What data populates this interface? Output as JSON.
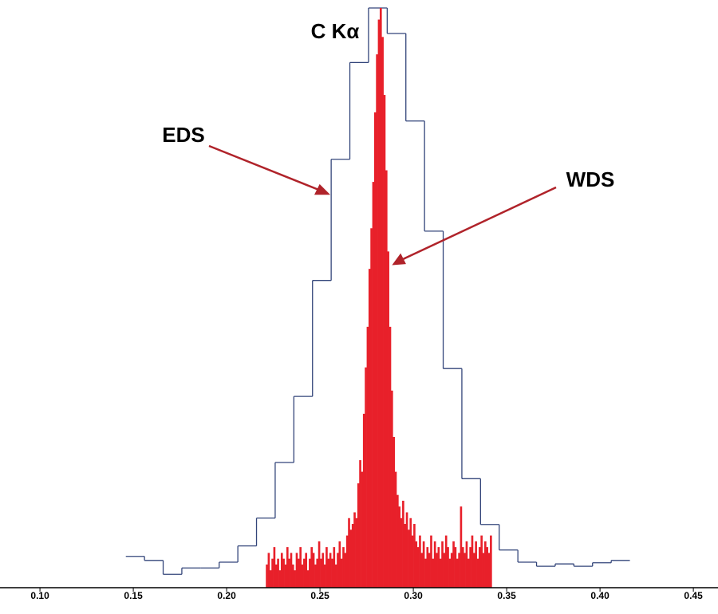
{
  "chart_data": {
    "type": "histogram",
    "title": "C Kα",
    "xlim": [
      0.0786,
      0.4632
    ],
    "ylim": [
      0,
      100
    ],
    "xticks": [
      {
        "value": 0.1,
        "label": "0.10"
      },
      {
        "value": 0.15,
        "label": "0.15"
      },
      {
        "value": 0.2,
        "label": "0.20"
      },
      {
        "value": 0.25,
        "label": "0.25"
      },
      {
        "value": 0.3,
        "label": "0.30"
      },
      {
        "value": 0.35,
        "label": "0.35"
      },
      {
        "value": 0.4,
        "label": "0.40"
      },
      {
        "value": 0.45,
        "label": "0.45"
      }
    ],
    "series": [
      {
        "name": "EDS",
        "color": "#33457a",
        "style": "step",
        "bins": [
          0.146,
          0.156,
          0.166,
          0.176,
          0.186,
          0.196,
          0.206,
          0.216,
          0.226,
          0.236,
          0.246,
          0.256,
          0.266,
          0.276,
          0.286,
          0.296,
          0.306,
          0.316,
          0.326,
          0.336,
          0.346,
          0.356,
          0.366,
          0.376,
          0.386,
          0.396,
          0.406,
          0.416
        ],
        "values": [
          5.4,
          4.7,
          2.3,
          3.4,
          3.4,
          4.4,
          7.2,
          12,
          21.6,
          33,
          53,
          73.9,
          90.6,
          100,
          95.6,
          80.5,
          61.5,
          37.8,
          18.8,
          10.9,
          6.5,
          4.4,
          3.7,
          4.1,
          3.7,
          4.3,
          4.7
        ]
      },
      {
        "name": "WDS",
        "color": "#e8202a",
        "style": "filled",
        "bins": [
          0.221,
          0.222,
          0.223,
          0.224,
          0.225,
          0.226,
          0.227,
          0.228,
          0.229,
          0.23,
          0.231,
          0.232,
          0.233,
          0.234,
          0.235,
          0.236,
          0.237,
          0.238,
          0.239,
          0.24,
          0.241,
          0.242,
          0.243,
          0.244,
          0.245,
          0.246,
          0.247,
          0.248,
          0.249,
          0.25,
          0.251,
          0.252,
          0.253,
          0.254,
          0.255,
          0.256,
          0.257,
          0.258,
          0.259,
          0.26,
          0.261,
          0.262,
          0.263,
          0.264,
          0.265,
          0.266,
          0.267,
          0.268,
          0.269,
          0.27,
          0.271,
          0.272,
          0.273,
          0.274,
          0.275,
          0.276,
          0.277,
          0.278,
          0.279,
          0.28,
          0.281,
          0.282,
          0.283,
          0.284,
          0.285,
          0.286,
          0.287,
          0.288,
          0.289,
          0.29,
          0.291,
          0.292,
          0.293,
          0.294,
          0.295,
          0.296,
          0.297,
          0.298,
          0.299,
          0.3,
          0.301,
          0.302,
          0.303,
          0.304,
          0.305,
          0.306,
          0.307,
          0.308,
          0.309,
          0.31,
          0.311,
          0.312,
          0.313,
          0.314,
          0.315,
          0.316,
          0.317,
          0.318,
          0.319,
          0.32,
          0.321,
          0.322,
          0.323,
          0.324,
          0.325,
          0.326,
          0.327,
          0.328,
          0.329,
          0.33,
          0.331,
          0.332,
          0.333,
          0.334,
          0.335,
          0.336,
          0.337,
          0.338,
          0.339,
          0.34,
          0.341,
          0.342
        ],
        "values": [
          4,
          6,
          3,
          5,
          7,
          4,
          5,
          3,
          6,
          5,
          4,
          7,
          5,
          6,
          4,
          3,
          6,
          5,
          7,
          4,
          5,
          6,
          3,
          5,
          7,
          6,
          4,
          5,
          8,
          5,
          6,
          4,
          7,
          5,
          6,
          5,
          7,
          4,
          6,
          8,
          5,
          7,
          6,
          9,
          12,
          10,
          11,
          13,
          12,
          18,
          22,
          20,
          30,
          38,
          45,
          55,
          62,
          70,
          82,
          92,
          98,
          100,
          95,
          85,
          72,
          58,
          45,
          34,
          26,
          20,
          16,
          14,
          12,
          15,
          11,
          13,
          10,
          12,
          9,
          11,
          8,
          7,
          9,
          6,
          8,
          5,
          7,
          6,
          9,
          5,
          8,
          6,
          7,
          5,
          8,
          6,
          9,
          7,
          5,
          6,
          8,
          7,
          5,
          6,
          14,
          7,
          6,
          8,
          5,
          7,
          9,
          6,
          8,
          5,
          7,
          9,
          6,
          8,
          7,
          6,
          9
        ]
      }
    ]
  }
}
